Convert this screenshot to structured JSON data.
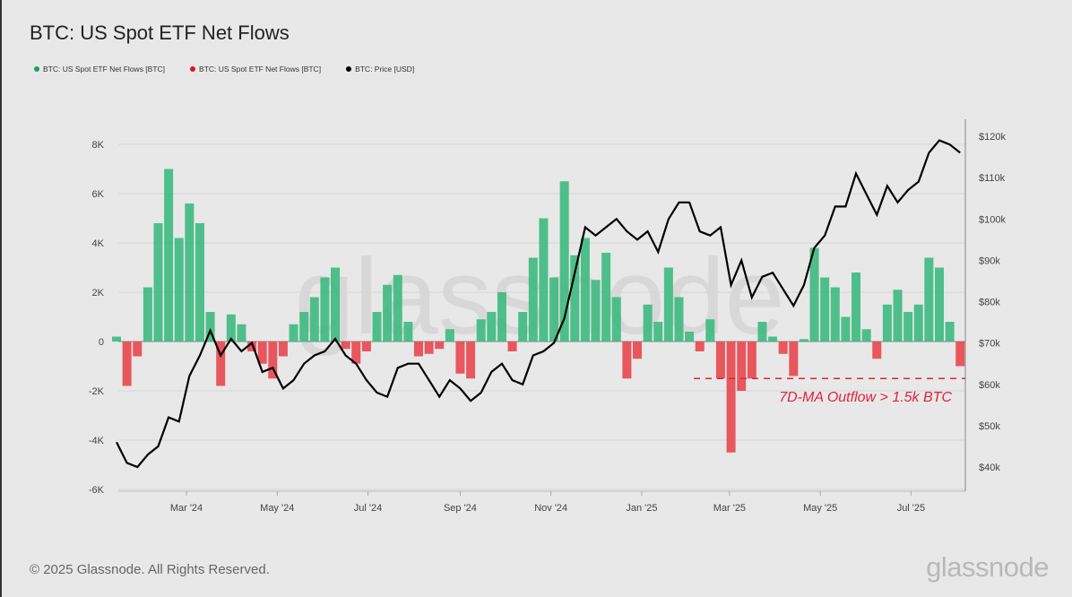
{
  "header": {
    "title": "BTC: US Spot ETF Net Flows"
  },
  "legend": [
    {
      "label": "BTC: US Spot ETF Net Flows [BTC]",
      "color": "#1aa35f"
    },
    {
      "label": "BTC: US Spot ETF Net Flows [BTC]",
      "color": "#e0141e"
    },
    {
      "label": "BTC: Price [USD]",
      "color": "#000000"
    }
  ],
  "footer": {
    "copyright": "© 2025 Glassnode. All Rights Reserved.",
    "logo": "glassnode",
    "watermark": "glassnode"
  },
  "chart_data": {
    "type": "bar+line",
    "title": "BTC: US Spot ETF Net Flows",
    "left_axis": {
      "ticks": [
        "8K",
        "6K",
        "4K",
        "2K",
        "0",
        "-2K",
        "-4K",
        "-6K"
      ],
      "range": [
        -6000,
        8000
      ]
    },
    "right_axis": {
      "ticks": [
        "$120k",
        "$110k",
        "$100k",
        "$90k",
        "$80k",
        "$70k",
        "$60k",
        "$50k",
        "$40k"
      ],
      "range": [
        40000,
        120000
      ]
    },
    "x_ticks": [
      {
        "label": "Mar '24",
        "date": "2024-03-01"
      },
      {
        "label": "May '24",
        "date": "2024-05-01"
      },
      {
        "label": "Jul '24",
        "date": "2024-07-01"
      },
      {
        "label": "Sep '24",
        "date": "2024-09-01"
      },
      {
        "label": "Nov '24",
        "date": "2024-11-01"
      },
      {
        "label": "Jan '25",
        "date": "2025-01-01"
      },
      {
        "label": "Mar '25",
        "date": "2025-03-01"
      },
      {
        "label": "May '25",
        "date": "2025-05-01"
      },
      {
        "label": "Jul '25",
        "date": "2025-07-01"
      }
    ],
    "grid": true,
    "positive_color": "#3dba80",
    "negative_color": "#e8474f",
    "price_color": "#000000",
    "annotation": {
      "text": "7D-MA Outflow > 1.5k BTC",
      "threshold": -1500,
      "from": "2025-02-05",
      "color": "#e0223a"
    },
    "dates": [
      "2024-01-11",
      "2024-01-18",
      "2024-01-25",
      "2024-02-01",
      "2024-02-08",
      "2024-02-15",
      "2024-02-22",
      "2024-02-29",
      "2024-03-07",
      "2024-03-14",
      "2024-03-21",
      "2024-03-28",
      "2024-04-04",
      "2024-04-11",
      "2024-04-18",
      "2024-04-25",
      "2024-05-02",
      "2024-05-09",
      "2024-05-16",
      "2024-05-23",
      "2024-05-30",
      "2024-06-06",
      "2024-06-13",
      "2024-06-20",
      "2024-06-27",
      "2024-07-04",
      "2024-07-11",
      "2024-07-18",
      "2024-07-25",
      "2024-08-01",
      "2024-08-08",
      "2024-08-15",
      "2024-08-22",
      "2024-08-29",
      "2024-09-05",
      "2024-09-12",
      "2024-09-19",
      "2024-09-26",
      "2024-10-03",
      "2024-10-10",
      "2024-10-17",
      "2024-10-24",
      "2024-10-31",
      "2024-11-07",
      "2024-11-14",
      "2024-11-21",
      "2024-11-28",
      "2024-12-05",
      "2024-12-12",
      "2024-12-19",
      "2024-12-26",
      "2025-01-02",
      "2025-01-09",
      "2025-01-16",
      "2025-01-23",
      "2025-01-30",
      "2025-02-06",
      "2025-02-13",
      "2025-02-20",
      "2025-02-27",
      "2025-03-06",
      "2025-03-13",
      "2025-03-20",
      "2025-03-27",
      "2025-04-03",
      "2025-04-10",
      "2025-04-17",
      "2025-04-24",
      "2025-05-01",
      "2025-05-08",
      "2025-05-15",
      "2025-05-22",
      "2025-05-29",
      "2025-06-05",
      "2025-06-12",
      "2025-06-19",
      "2025-06-26",
      "2025-07-03",
      "2025-07-10",
      "2025-07-17",
      "2025-07-24",
      "2025-07-31"
    ],
    "series": [
      {
        "name": "BTC: US Spot ETF Net Flows [BTC]",
        "axis": "left",
        "values": [
          200,
          -1800,
          -600,
          2200,
          4800,
          7000,
          4200,
          5600,
          4800,
          1200,
          -1800,
          1100,
          700,
          -400,
          -900,
          -1500,
          -600,
          700,
          1200,
          1800,
          2600,
          3000,
          -300,
          -900,
          -400,
          1200,
          2300,
          2700,
          800,
          -600,
          -500,
          -300,
          500,
          -1300,
          -1500,
          900,
          1200,
          2000,
          -400,
          1200,
          3400,
          5000,
          2600,
          6500,
          3500,
          4200,
          2500,
          3600,
          1800,
          -1500,
          -700,
          1500,
          800,
          3000,
          1800,
          400,
          -400,
          900,
          -1500,
          -4500,
          -2000,
          -1500,
          800,
          200,
          -500,
          -1400,
          100,
          3800,
          2600,
          2200,
          1000,
          2800,
          500,
          -700,
          1500,
          2100,
          1200,
          1500,
          3400,
          3000,
          800,
          -1000
        ]
      },
      {
        "name": "BTC: Price [USD]",
        "axis": "right",
        "values": [
          46000,
          41000,
          40000,
          43000,
          45000,
          52000,
          51000,
          62000,
          67000,
          73000,
          67000,
          71000,
          68000,
          70000,
          63000,
          64000,
          59000,
          61000,
          65000,
          67000,
          68000,
          71000,
          67000,
          65000,
          61000,
          58000,
          57000,
          64000,
          65000,
          65000,
          61000,
          57000,
          61000,
          59000,
          56000,
          58000,
          63000,
          65000,
          61000,
          60000,
          67000,
          68000,
          70000,
          76000,
          87000,
          98000,
          96000,
          98000,
          100000,
          97000,
          95000,
          97000,
          92000,
          100000,
          104000,
          104000,
          97000,
          96000,
          98000,
          84000,
          90000,
          81000,
          86000,
          87000,
          83000,
          79000,
          84000,
          93000,
          96000,
          103000,
          103000,
          111000,
          106000,
          101000,
          108000,
          104000,
          107000,
          109000,
          116000,
          119000,
          118000,
          116000
        ]
      }
    ]
  }
}
